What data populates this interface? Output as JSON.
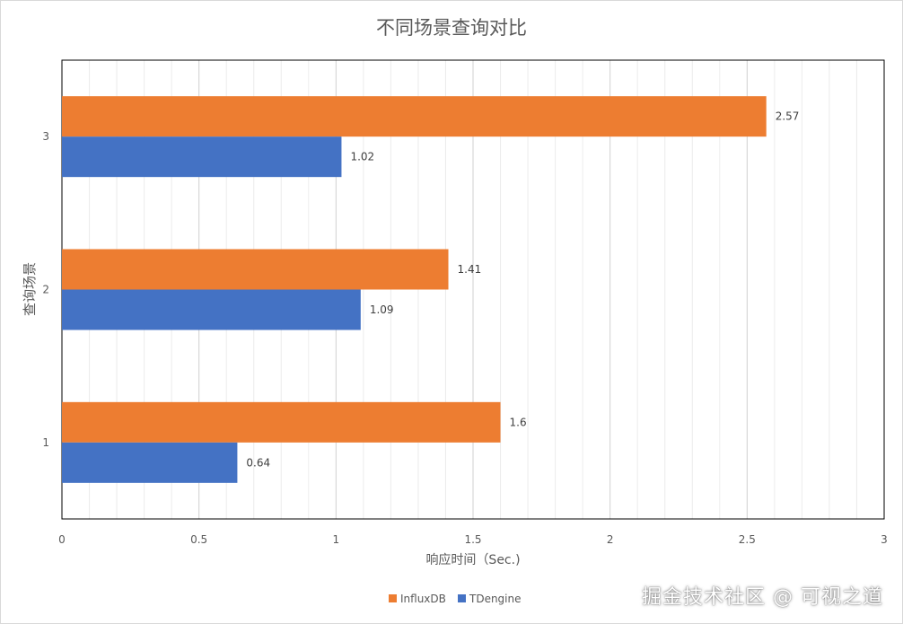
{
  "chart_data": {
    "type": "bar",
    "orientation": "horizontal",
    "title": "不同场景查询对比",
    "xlabel": "响应时间（Sec.)",
    "ylabel": "查询场景",
    "categories": [
      "1",
      "2",
      "3"
    ],
    "series": [
      {
        "name": "InfluxDB",
        "color": "#ED7D31",
        "values": [
          1.6,
          1.41,
          2.57
        ],
        "labels": [
          "1.6",
          "1.41",
          "2.57"
        ]
      },
      {
        "name": "TDengine",
        "color": "#4472C4",
        "values": [
          0.64,
          1.09,
          1.02
        ],
        "labels": [
          "0.64",
          "1.09",
          "1.02"
        ]
      }
    ],
    "xlim": [
      0,
      3
    ],
    "xticks": [
      0,
      0.5,
      1,
      1.5,
      2,
      2.5,
      3
    ],
    "xtick_labels": [
      "0",
      "0.5",
      "1",
      "1.5",
      "2",
      "2.5",
      "3"
    ],
    "grid": true,
    "legend_position": "bottom"
  },
  "watermark": "掘金技术社区 @ 可视之道"
}
